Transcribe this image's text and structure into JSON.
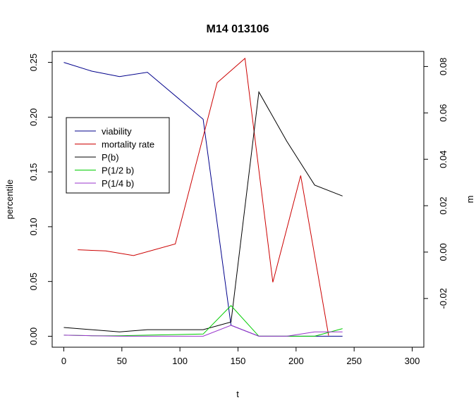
{
  "chart_data": {
    "type": "line",
    "title": "M14 013106",
    "xlabel": "t",
    "ylabel": "percentile",
    "y2label": "m",
    "xlim": [
      -10,
      310
    ],
    "ylim": [
      -0.01,
      0.26
    ],
    "y2lim": [
      -0.041,
      0.0865
    ],
    "xticks": [
      "0",
      "50",
      "100",
      "150",
      "200",
      "250",
      "300"
    ],
    "yticks": [
      "0.00",
      "0.05",
      "0.10",
      "0.15",
      "0.20",
      "0.25"
    ],
    "y2ticks": [
      "-0.02",
      "0.00",
      "0.02",
      "0.04",
      "0.06",
      "0.08"
    ],
    "legend_position": "top-left",
    "series": [
      {
        "name": "viability",
        "color": "#00008b",
        "axis": "left",
        "x": [
          0,
          24,
          48,
          72,
          120,
          144,
          168,
          240
        ],
        "y": [
          0.25,
          0.242,
          0.237,
          0.241,
          0.198,
          0.01,
          0.0,
          0.0
        ]
      },
      {
        "name": "mortality rate",
        "color": "#cc0000",
        "axis": "right",
        "x": [
          12,
          36,
          60,
          96,
          132,
          156,
          180,
          204,
          228
        ],
        "y": [
          0.001,
          0.0005,
          -0.0015,
          0.0035,
          0.073,
          0.0835,
          -0.013,
          0.033,
          -0.036
        ]
      },
      {
        "name": "P(b)",
        "color": "#000000",
        "axis": "left",
        "x": [
          0,
          24,
          48,
          72,
          120,
          144,
          168,
          192,
          216,
          240
        ],
        "y": [
          0.008,
          0.006,
          0.004,
          0.006,
          0.006,
          0.013,
          0.223,
          0.178,
          0.138,
          0.128
        ]
      },
      {
        "name": "P(1/2 b)",
        "color": "#00cc00",
        "axis": "left",
        "x": [
          0,
          24,
          48,
          72,
          120,
          144,
          168,
          192,
          216,
          240
        ],
        "y": [
          0.001,
          0.0005,
          0.0005,
          0.001,
          0.002,
          0.028,
          0.0,
          0.0,
          0.0,
          0.007
        ]
      },
      {
        "name": "P(1/4 b)",
        "color": "#9933cc",
        "axis": "left",
        "x": [
          0,
          24,
          48,
          72,
          120,
          144,
          168,
          192,
          216,
          240
        ],
        "y": [
          0.001,
          0.0005,
          0.0,
          0.0,
          0.0,
          0.01,
          0.0,
          0.0,
          0.004,
          0.004
        ]
      }
    ]
  }
}
